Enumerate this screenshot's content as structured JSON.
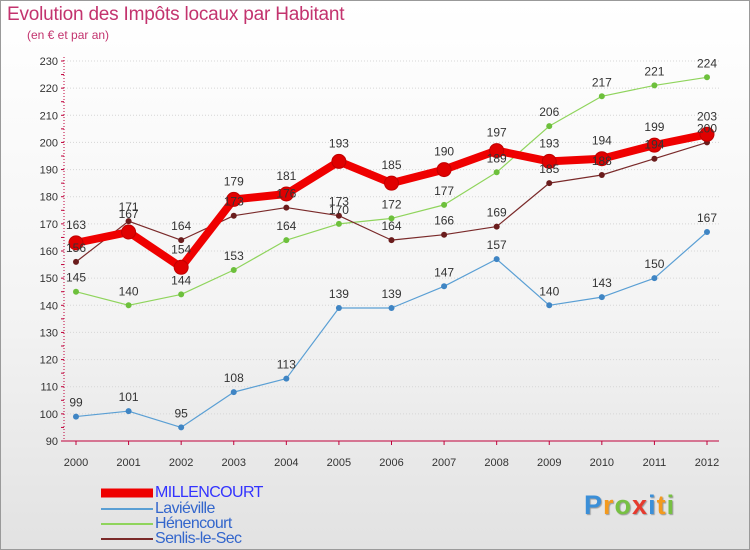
{
  "header": {
    "title": "Evolution des Impôts locaux par Habitant",
    "subtitle": "(en € et par an)"
  },
  "colors": {
    "title": "#c3336e",
    "axis": "#c0003a",
    "tick_text": "#333333",
    "grid": "#d6d6d6"
  },
  "chart_data": {
    "type": "line",
    "title": "Evolution des Impôts locaux par Habitant",
    "subtitle": "(en € et par an)",
    "xlabel": "",
    "ylabel": "",
    "ylim": [
      90,
      230
    ],
    "yticks": [
      90,
      100,
      110,
      120,
      130,
      140,
      150,
      160,
      170,
      180,
      190,
      200,
      210,
      220,
      230
    ],
    "grid": "horizontal dotted",
    "legend_position": "bottom-left",
    "x": [
      2000,
      2001,
      2002,
      2003,
      2004,
      2005,
      2006,
      2007,
      2008,
      2009,
      2010,
      2011,
      2012
    ],
    "series": [
      {
        "name": "Laviéville",
        "color": "#5a9fd4",
        "marker": "#3f85c4",
        "width": 1.2,
        "values": [
          99,
          101,
          95,
          108,
          113,
          139,
          139,
          147,
          157,
          140,
          143,
          150,
          167
        ]
      },
      {
        "name": "Hénencourt",
        "color": "#8fd45c",
        "marker": "#6dc03c",
        "width": 1.2,
        "values": [
          145,
          140,
          144,
          153,
          164,
          170,
          172,
          177,
          189,
          206,
          217,
          221,
          224
        ]
      },
      {
        "name": "Senlis-le-Sec",
        "color": "#7a2a2a",
        "marker": "#6a1c1c",
        "width": 1.2,
        "values": [
          156,
          171,
          164,
          173,
          176,
          173,
          164,
          166,
          169,
          185,
          188,
          194,
          200
        ]
      },
      {
        "name": "MILLENCOURT",
        "color": "#ef0000",
        "marker": "#e00000",
        "width": 8,
        "values": [
          163,
          167,
          154,
          179,
          181,
          193,
          185,
          190,
          197,
          193,
          194,
          199,
          203
        ]
      }
    ],
    "legend_order": [
      "MILLENCOURT",
      "Laviéville",
      "Hénencourt",
      "Senlis-le-Sec"
    ]
  },
  "legend": {
    "items": [
      {
        "label": "MILLENCOURT",
        "color": "#ef0000",
        "text_color": "#3333ff"
      },
      {
        "label": "Laviéville",
        "color": "#5a9fd4",
        "text_color": "#3366cc"
      },
      {
        "label": "Hénencourt",
        "color": "#8fd45c",
        "text_color": "#3366cc"
      },
      {
        "label": "Senlis-le-Sec",
        "color": "#7a2a2a",
        "text_color": "#3366cc"
      }
    ]
  },
  "logo": {
    "text": "Proxiti",
    "letters": [
      {
        "ch": "P",
        "color": "#3b8fd8"
      },
      {
        "ch": "r",
        "color": "#f39a1e"
      },
      {
        "ch": "o",
        "color": "#77c043"
      },
      {
        "ch": "x",
        "color": "#e63a2e"
      },
      {
        "ch": "i",
        "color": "#3b8fd8"
      },
      {
        "ch": "t",
        "color": "#f39a1e"
      },
      {
        "ch": "i",
        "color": "#77c043"
      }
    ]
  }
}
